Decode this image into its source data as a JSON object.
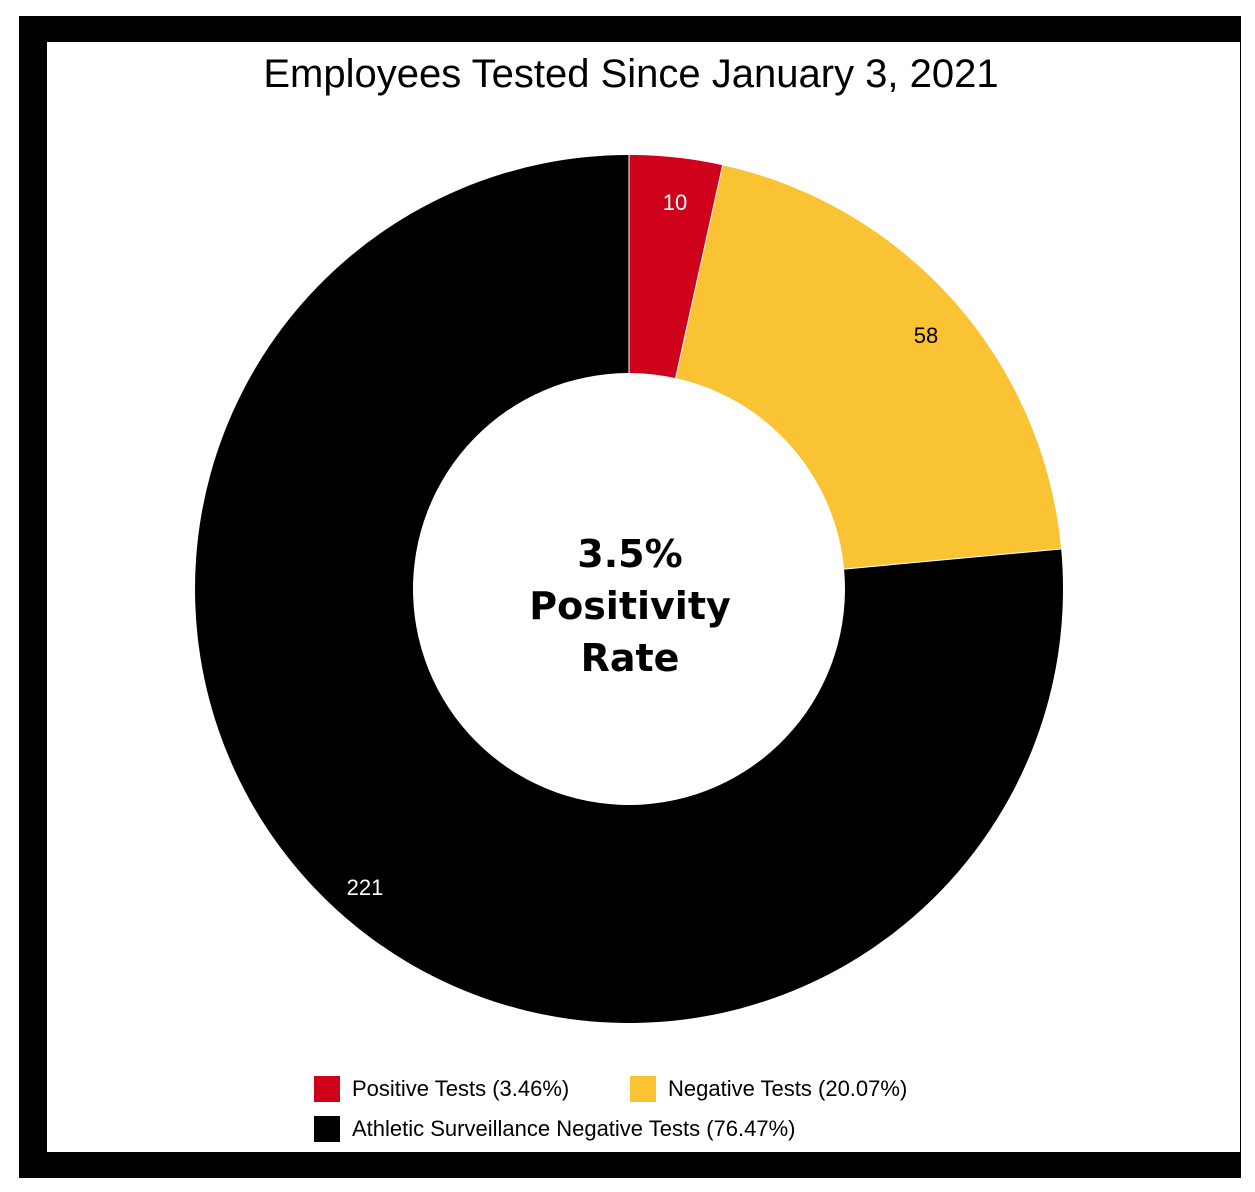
{
  "chart_data": {
    "type": "pie",
    "title": "Employees Tested Since January 3, 2021",
    "center_label": [
      "3.5%",
      "Positivity",
      "Rate"
    ],
    "slices": [
      {
        "name": "Positive Tests (3.46%)",
        "value": 10,
        "label": "10",
        "color": "#d0021b",
        "label_color": "#ffffff"
      },
      {
        "name": "Negative Tests (20.07%)",
        "value": 58,
        "label": "58",
        "color": "#f9c333",
        "label_color": "#000000"
      },
      {
        "name": "Athletic Surveillance Negative Tests (76.47%)",
        "value": 221,
        "label": "221",
        "color": "#000000",
        "label_color": "#ffffff"
      }
    ],
    "legend_position": "bottom"
  }
}
